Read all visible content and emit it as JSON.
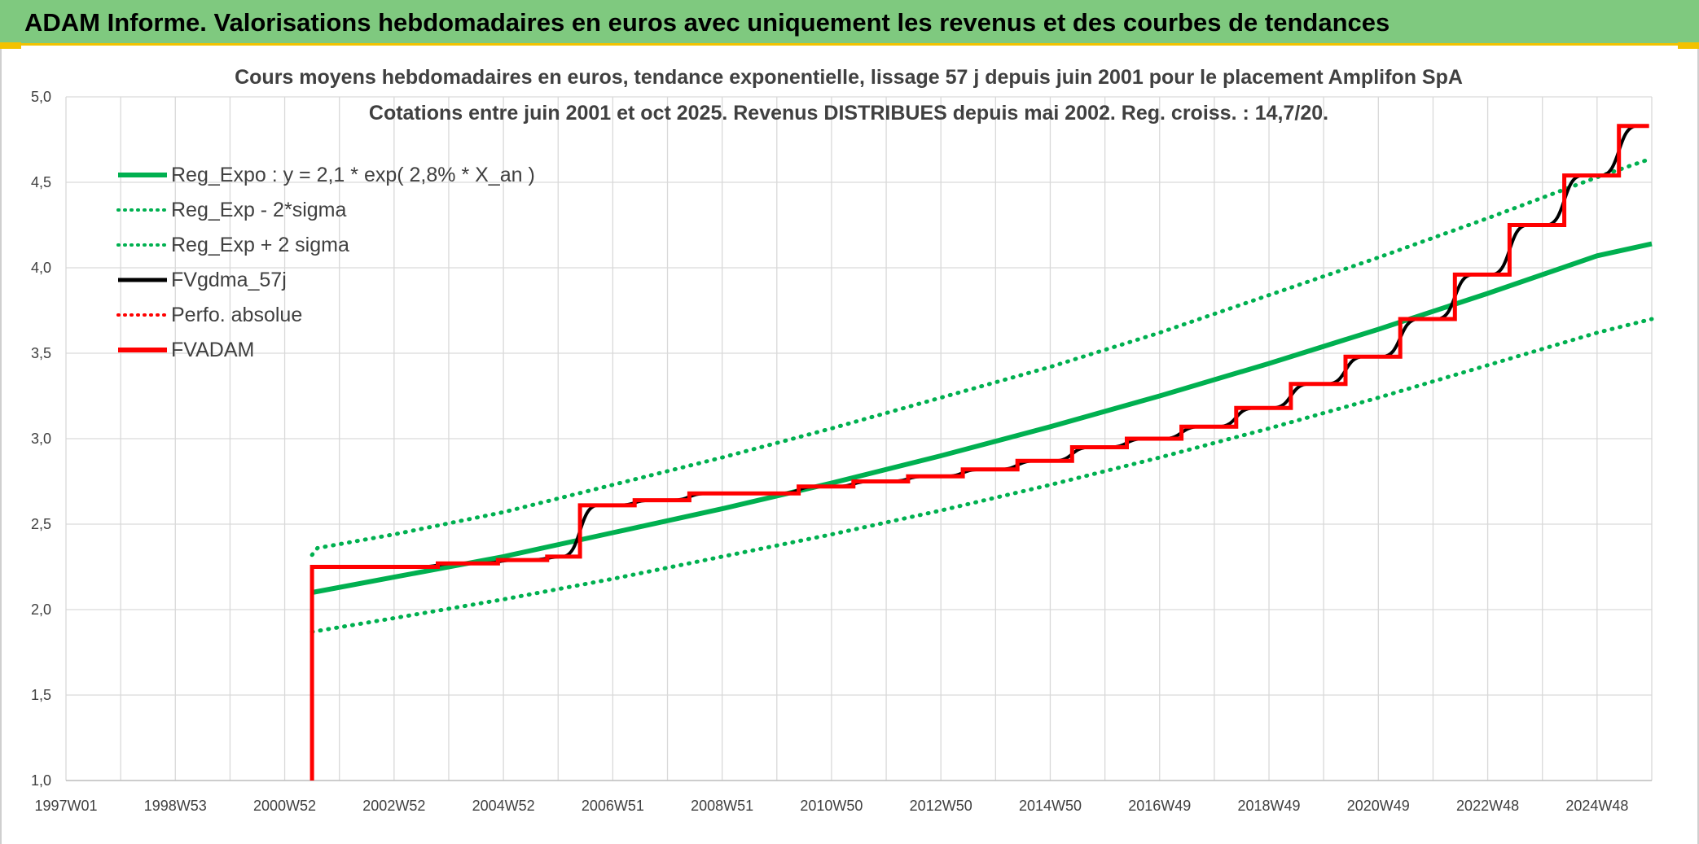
{
  "header": {
    "title": "ADAM Informe. Valorisations hebdomadaires en euros avec uniquement les revenus et des courbes de tendances"
  },
  "colors": {
    "banner": "#7fc97f",
    "accent": "#f2c200",
    "green": "#00b050",
    "red": "#ff0000",
    "black": "#000000"
  },
  "chart_data": {
    "type": "line",
    "title_line1": "Cours moyens hebdomadaires en euros, tendance exponentielle, lissage 57 j depuis juin 2001 pour le placement Amplifon SpA",
    "title_line2": "Cotations entre juin 2001 et oct 2025. Revenus DISTRIBUES depuis mai 2002. Reg. croiss. : 14,7/20.",
    "x_range": [
      1997.0,
      2026.0
    ],
    "ylim": [
      1.0,
      5.0
    ],
    "y_ticks": [
      1.0,
      1.5,
      2.0,
      2.5,
      3.0,
      3.5,
      4.0,
      4.5,
      5.0
    ],
    "y_tick_labels": [
      "1,0",
      "1,5",
      "2,0",
      "2,5",
      "3,0",
      "3,5",
      "4,0",
      "4,5",
      "5,0"
    ],
    "x_ticks": [
      1997.0,
      1999.0,
      2001.0,
      2003.0,
      2005.0,
      2007.0,
      2009.0,
      2011.0,
      2013.0,
      2015.0,
      2017.0,
      2019.0,
      2021.0,
      2023.0,
      2025.0
    ],
    "x_tick_labels": [
      "1997W01",
      "1998W53",
      "2000W52",
      "2002W52",
      "2004W52",
      "2006W51",
      "2008W51",
      "2010W50",
      "2012W50",
      "2014W50",
      "2016W49",
      "2018W49",
      "2020W49",
      "2022W48",
      "2024W48"
    ],
    "grid": true,
    "legend_position": "top-left",
    "legend": [
      {
        "label": "Reg_Expo : y = 2,1 * exp( 2,8% *  X_an )",
        "color": "#00b050",
        "style": "solid"
      },
      {
        "label": "Reg_Exp - 2*sigma",
        "color": "#00b050",
        "style": "dotted"
      },
      {
        "label": "Reg_Exp + 2 sigma",
        "color": "#00b050",
        "style": "dotted"
      },
      {
        "label": "FVgdma_57j",
        "color": "#000000",
        "style": "solid"
      },
      {
        "label": "Perfo. absolue",
        "color": "#ff0000",
        "style": "dotted"
      },
      {
        "label": "FVADAM",
        "color": "#ff0000",
        "style": "solid"
      }
    ],
    "series": [
      {
        "name": "Reg_Expo : y = 2,1 * exp( 2,8% *  X_an )",
        "x": [
          2001.5,
          2003.0,
          2005.0,
          2007.0,
          2009.0,
          2011.0,
          2013.0,
          2015.0,
          2017.0,
          2019.0,
          2021.0,
          2023.0,
          2025.0,
          2026.0
        ],
        "values": [
          2.1,
          2.19,
          2.31,
          2.45,
          2.59,
          2.74,
          2.9,
          3.07,
          3.25,
          3.44,
          3.64,
          3.85,
          4.07,
          4.14
        ]
      },
      {
        "name": "Reg_Exp - 2*sigma",
        "x": [
          2001.5,
          2003.0,
          2005.0,
          2007.0,
          2009.0,
          2011.0,
          2013.0,
          2015.0,
          2017.0,
          2019.0,
          2021.0,
          2023.0,
          2025.0,
          2026.0
        ],
        "values": [
          1.87,
          1.95,
          2.06,
          2.18,
          2.31,
          2.44,
          2.58,
          2.73,
          2.89,
          3.06,
          3.24,
          3.43,
          3.62,
          3.7
        ]
      },
      {
        "name": "Reg_Exp + 2 sigma",
        "x": [
          2001.5,
          2001.6,
          2003.0,
          2005.0,
          2007.0,
          2009.0,
          2011.0,
          2013.0,
          2015.0,
          2017.0,
          2019.0,
          2021.0,
          2023.0,
          2025.0,
          2026.0
        ],
        "values": [
          2.32,
          2.36,
          2.44,
          2.57,
          2.73,
          2.89,
          3.06,
          3.24,
          3.42,
          3.62,
          3.84,
          4.06,
          4.29,
          4.53,
          4.64
        ]
      },
      {
        "name": "FVADAM",
        "steps": [
          {
            "x": 2001.5,
            "y": 1.0
          },
          {
            "x": 2001.5,
            "y": 2.25
          },
          {
            "x": 2003.8,
            "y": 2.27
          },
          {
            "x": 2004.9,
            "y": 2.29
          },
          {
            "x": 2005.8,
            "y": 2.31
          },
          {
            "x": 2006.4,
            "y": 2.61
          },
          {
            "x": 2007.4,
            "y": 2.64
          },
          {
            "x": 2008.4,
            "y": 2.68
          },
          {
            "x": 2010.4,
            "y": 2.72
          },
          {
            "x": 2011.4,
            "y": 2.75
          },
          {
            "x": 2012.4,
            "y": 2.78
          },
          {
            "x": 2013.4,
            "y": 2.82
          },
          {
            "x": 2014.4,
            "y": 2.87
          },
          {
            "x": 2015.4,
            "y": 2.95
          },
          {
            "x": 2016.4,
            "y": 3.0
          },
          {
            "x": 2017.4,
            "y": 3.07
          },
          {
            "x": 2018.4,
            "y": 3.18
          },
          {
            "x": 2019.4,
            "y": 3.32
          },
          {
            "x": 2020.4,
            "y": 3.48
          },
          {
            "x": 2021.4,
            "y": 3.7
          },
          {
            "x": 2022.4,
            "y": 3.96
          },
          {
            "x": 2023.4,
            "y": 4.25
          },
          {
            "x": 2024.4,
            "y": 4.54
          },
          {
            "x": 2025.4,
            "y": 4.83
          },
          {
            "x": 2025.95,
            "y": 4.83
          }
        ]
      }
    ]
  }
}
